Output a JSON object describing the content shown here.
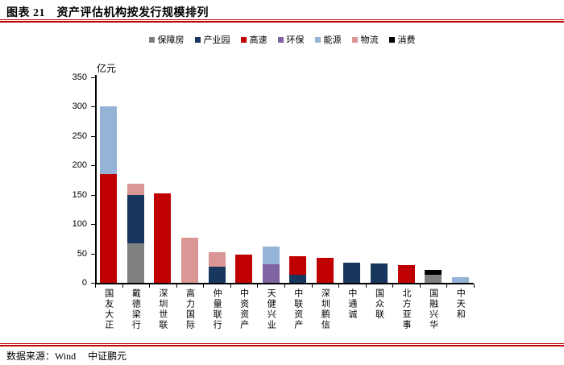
{
  "page": {
    "title": "图表 21　资产评估机构按发行规模排列",
    "source_note": "数据来源：Wind　 中证鹏元",
    "accent_color": "#C00000"
  },
  "chart_data": {
    "type": "bar",
    "stacked": true,
    "title": "资产评估机构按发行规模排列",
    "ylabel_unit": "亿元",
    "ylim": [
      0,
      350
    ],
    "yticks": [
      0,
      50,
      100,
      150,
      200,
      250,
      300,
      350
    ],
    "grid": false,
    "legend_position": "top",
    "categories": [
      "国友大正",
      "戴德梁行",
      "深圳世联",
      "高力国际",
      "仲量联行",
      "中资资产",
      "天健兴业",
      "中联资产",
      "深圳鹏信",
      "中通诚",
      "国众联",
      "北方亚事",
      "国融兴华",
      "中天和"
    ],
    "series": [
      {
        "name": "保障房",
        "color": "#808080",
        "values": [
          0,
          67,
          0,
          0,
          0,
          0,
          0,
          0,
          0,
          0,
          0,
          0,
          14,
          0
        ]
      },
      {
        "name": "产业园",
        "color": "#17375E",
        "values": [
          0,
          83,
          0,
          0,
          27,
          0,
          0,
          14,
          0,
          35,
          33,
          0,
          0,
          0
        ]
      },
      {
        "name": "高速",
        "color": "#C00000",
        "values": [
          185,
          0,
          152,
          0,
          0,
          48,
          0,
          31,
          42,
          0,
          0,
          30,
          0,
          0
        ]
      },
      {
        "name": "环保",
        "color": "#8064A2",
        "values": [
          0,
          0,
          0,
          0,
          0,
          0,
          32,
          0,
          0,
          0,
          0,
          0,
          0,
          0
        ]
      },
      {
        "name": "能源",
        "color": "#95B3D7",
        "values": [
          115,
          0,
          0,
          0,
          0,
          0,
          30,
          0,
          0,
          0,
          0,
          0,
          0,
          9
        ]
      },
      {
        "name": "物流",
        "color": "#D99694",
        "values": [
          0,
          19,
          0,
          77,
          25,
          0,
          0,
          0,
          0,
          0,
          0,
          0,
          0,
          0
        ]
      },
      {
        "name": "消费",
        "color": "#000000",
        "values": [
          0,
          0,
          0,
          0,
          0,
          0,
          0,
          0,
          0,
          0,
          0,
          0,
          8,
          0
        ]
      }
    ]
  }
}
